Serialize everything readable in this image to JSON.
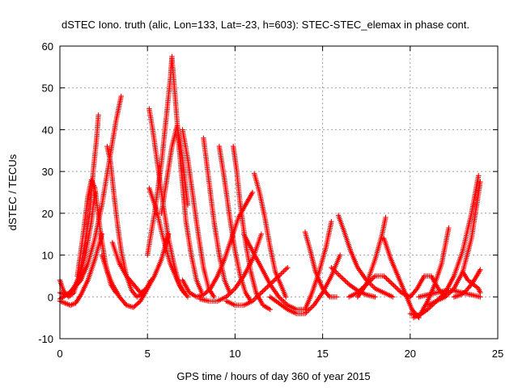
{
  "chart_data": {
    "type": "scatter",
    "title": "dSTEC Iono. truth (alic, Lon=133, Lat=-23, h=603): STEC-STEC_elemax in phase cont.",
    "xlabel": "GPS time / hours of day 360 of year 2015",
    "ylabel": "dSTEC  / TECUs",
    "xlim": [
      0,
      25
    ],
    "ylim": [
      -10,
      60
    ],
    "xticks": [
      0,
      5,
      10,
      15,
      20,
      25
    ],
    "yticks": [
      -10,
      0,
      10,
      20,
      30,
      40,
      50,
      60
    ],
    "grid": true,
    "marker": "plus",
    "color": "#ff0000",
    "series": [
      {
        "x": [
          0.0,
          0.2,
          0.5,
          0.8,
          1.1,
          1.4,
          1.7,
          1.9,
          2.1,
          2.2
        ],
        "y": [
          4.0,
          1.5,
          0.0,
          1.0,
          5.0,
          12.0,
          20.0,
          30.0,
          38.0,
          43.5
        ]
      },
      {
        "x": [
          0.0,
          0.3,
          0.6,
          0.9,
          1.2,
          1.5,
          1.8,
          2.0
        ],
        "y": [
          1.0,
          0.5,
          1.0,
          3.0,
          6.0,
          11.0,
          18.0,
          25.0
        ]
      },
      {
        "x": [
          0.0,
          0.4,
          0.8,
          1.2,
          1.6,
          2.0,
          2.4,
          2.8,
          3.2,
          3.5
        ],
        "y": [
          -0.5,
          0.5,
          2.0,
          4.0,
          8.0,
          14.0,
          22.0,
          32.0,
          42.0,
          48.0
        ]
      },
      {
        "x": [
          0.0,
          0.3,
          0.6,
          0.9,
          1.2,
          1.6,
          2.0,
          2.4
        ],
        "y": [
          -1.0,
          -1.5,
          -2.0,
          -1.5,
          0.5,
          4.0,
          9.0,
          15.0
        ]
      },
      {
        "x": [
          1.0,
          1.3,
          1.6,
          1.8,
          2.0,
          2.3,
          2.6,
          2.9,
          3.2
        ],
        "y": [
          5.0,
          14.0,
          24.0,
          28.0,
          26.0,
          16.0,
          8.0,
          3.0,
          1.0
        ]
      },
      {
        "x": [
          2.7,
          2.9,
          3.1,
          3.3,
          3.5,
          3.8,
          4.1,
          4.4,
          4.8,
          5.2
        ],
        "y": [
          36.0,
          32.0,
          24.0,
          17.0,
          11.0,
          5.0,
          1.5,
          0.0,
          1.0,
          4.0
        ]
      },
      {
        "x": [
          2.4,
          2.7,
          3.0,
          3.4,
          3.8,
          4.2,
          4.6,
          5.0
        ],
        "y": [
          10.0,
          6.0,
          3.0,
          0.0,
          -2.0,
          -2.5,
          -1.0,
          2.0
        ]
      },
      {
        "x": [
          3.0,
          3.4,
          3.8,
          4.2,
          4.6,
          5.0,
          5.4,
          5.8,
          6.2
        ],
        "y": [
          13.0,
          8.0,
          5.0,
          3.0,
          1.0,
          2.0,
          5.0,
          9.0,
          15.0
        ]
      },
      {
        "x": [
          5.1,
          5.3,
          5.6,
          5.9,
          6.2,
          6.5,
          6.8,
          7.1
        ],
        "y": [
          45.0,
          40.0,
          31.0,
          22.0,
          14.0,
          8.0,
          3.0,
          1.0
        ]
      },
      {
        "x": [
          5.1,
          5.5,
          5.9,
          6.3,
          6.7,
          7.0,
          7.3
        ],
        "y": [
          26.0,
          21.0,
          14.0,
          8.0,
          4.0,
          1.5,
          0.0
        ]
      },
      {
        "x": [
          5.0,
          5.4,
          5.8,
          6.1,
          6.3,
          6.4
        ],
        "y": [
          10.0,
          20.0,
          32.0,
          44.0,
          52.0,
          57.5
        ]
      },
      {
        "x": [
          6.4,
          6.6,
          6.8,
          7.0,
          7.2,
          7.5,
          7.8,
          8.1
        ],
        "y": [
          57.0,
          47.0,
          36.0,
          27.0,
          18.0,
          10.0,
          4.0,
          1.0
        ]
      },
      {
        "x": [
          5.8,
          6.1,
          6.4,
          6.7,
          7.0,
          7.3
        ],
        "y": [
          20.0,
          28.0,
          36.0,
          41.0,
          33.0,
          22.0
        ]
      },
      {
        "x": [
          7.0,
          7.3,
          7.6,
          7.9,
          8.2,
          8.5,
          8.8
        ],
        "y": [
          40.0,
          33.0,
          24.0,
          15.0,
          7.0,
          2.0,
          0.0
        ]
      },
      {
        "x": [
          8.2,
          8.5,
          8.8,
          9.1,
          9.4,
          9.7
        ],
        "y": [
          38.0,
          28.0,
          18.0,
          10.0,
          4.0,
          1.0
        ]
      },
      {
        "x": [
          9.1,
          9.4,
          9.7,
          10.0,
          10.3,
          10.6,
          10.9
        ],
        "y": [
          36.0,
          28.0,
          19.0,
          11.0,
          5.0,
          1.0,
          -1.0
        ]
      },
      {
        "x": [
          9.9,
          10.1,
          10.3,
          10.6,
          10.9,
          11.2,
          11.6,
          12.0
        ],
        "y": [
          36.0,
          30.0,
          22.0,
          13.0,
          6.0,
          1.0,
          -2.0,
          -3.0
        ]
      },
      {
        "x": [
          11.1,
          11.4,
          11.7,
          12.0,
          12.3,
          12.6,
          12.9
        ],
        "y": [
          29.5,
          25.0,
          19.0,
          12.0,
          6.0,
          3.0,
          0.0
        ]
      },
      {
        "x": [
          7.0,
          7.4,
          7.8,
          8.2,
          8.6,
          9.0,
          9.4,
          9.8,
          10.2,
          10.6,
          11.0
        ],
        "y": [
          4.0,
          1.0,
          0.0,
          0.5,
          2.0,
          5.0,
          9.0,
          14.0,
          19.0,
          22.0,
          25.0
        ]
      },
      {
        "x": [
          8.0,
          8.5,
          9.0,
          9.5,
          10.0,
          10.5,
          11.0,
          11.5
        ],
        "y": [
          -0.5,
          -1.0,
          -1.0,
          0.0,
          2.0,
          5.0,
          9.0,
          15.0
        ]
      },
      {
        "x": [
          9.5,
          10.0,
          10.5,
          11.0,
          11.5,
          12.0,
          12.5,
          13.0
        ],
        "y": [
          -1.0,
          -2.0,
          -2.0,
          -1.0,
          1.0,
          3.0,
          5.0,
          7.0
        ]
      },
      {
        "x": [
          10.5,
          11.0,
          11.5,
          12.0,
          12.5,
          13.0,
          13.5,
          14.0
        ],
        "y": [
          15.0,
          11.0,
          7.0,
          3.0,
          0.0,
          -2.0,
          -3.0,
          -3.0
        ]
      },
      {
        "x": [
          12.0,
          12.5,
          13.0,
          13.5,
          14.0,
          14.5,
          15.0,
          15.5,
          16.0
        ],
        "y": [
          0.0,
          -1.5,
          -3.0,
          -4.0,
          -4.0,
          -2.0,
          1.0,
          5.0,
          10.0
        ]
      },
      {
        "x": [
          14.0,
          14.3,
          14.6,
          15.0,
          15.4,
          15.8
        ],
        "y": [
          15.5,
          11.0,
          6.0,
          2.0,
          0.0,
          0.0
        ]
      },
      {
        "x": [
          14.0,
          14.4,
          14.8,
          15.2,
          15.5
        ],
        "y": [
          -3.0,
          1.0,
          6.0,
          12.0,
          18.0
        ]
      },
      {
        "x": [
          15.9,
          16.2,
          16.6,
          17.0,
          17.5,
          18.0,
          18.5,
          19.0
        ],
        "y": [
          19.5,
          16.0,
          11.0,
          7.0,
          4.0,
          2.0,
          1.0,
          0.0
        ]
      },
      {
        "x": [
          15.5,
          16.0,
          16.5,
          17.0,
          17.5,
          18.0
        ],
        "y": [
          7.0,
          5.0,
          3.0,
          1.5,
          0.5,
          0.0
        ]
      },
      {
        "x": [
          16.5,
          17.0,
          17.5,
          18.0,
          18.5,
          19.0,
          19.5,
          20.0
        ],
        "y": [
          0.0,
          1.0,
          3.0,
          5.0,
          5.0,
          3.0,
          1.0,
          0.0
        ]
      },
      {
        "x": [
          17.0,
          17.5,
          18.0,
          18.4,
          18.6
        ],
        "y": [
          0.0,
          3.0,
          9.0,
          15.0,
          19.0
        ]
      },
      {
        "x": [
          18.5,
          18.9,
          19.3,
          19.7,
          20.1,
          20.5
        ],
        "y": [
          14.0,
          9.0,
          5.0,
          1.0,
          -3.0,
          -5.0
        ]
      },
      {
        "x": [
          20.2,
          20.6,
          21.0,
          21.4,
          21.8,
          22.2
        ],
        "y": [
          -5.0,
          -4.0,
          -1.0,
          3.0,
          8.0,
          16.5
        ]
      },
      {
        "x": [
          20.0,
          20.5,
          21.0,
          21.5,
          22.0,
          22.5,
          23.0,
          23.5,
          23.9
        ],
        "y": [
          -4.0,
          -4.5,
          -3.0,
          -1.0,
          1.0,
          5.0,
          11.0,
          20.0,
          29.0
        ]
      },
      {
        "x": [
          21.0,
          21.5,
          22.0,
          22.5,
          23.0,
          23.5,
          24.0
        ],
        "y": [
          -2.0,
          -1.0,
          0.0,
          2.0,
          6.0,
          14.0,
          27.5
        ]
      },
      {
        "x": [
          20.5,
          21.0,
          21.5,
          22.0,
          22.5,
          23.0,
          23.5,
          24.0
        ],
        "y": [
          0.0,
          0.5,
          1.0,
          1.5,
          1.5,
          1.0,
          0.5,
          0.0
        ]
      },
      {
        "x": [
          22.5,
          22.9,
          23.2,
          23.5,
          23.8,
          24.0
        ],
        "y": [
          0.0,
          0.5,
          1.5,
          3.0,
          5.0,
          6.5
        ]
      },
      {
        "x": [
          20.0,
          20.4,
          20.8,
          21.2,
          21.6,
          22.0
        ],
        "y": [
          0.0,
          2.0,
          5.0,
          5.0,
          2.0,
          0.0
        ]
      },
      {
        "x": [
          23.0,
          23.3,
          23.6,
          23.9,
          24.0
        ],
        "y": [
          6.0,
          4.0,
          3.0,
          2.0,
          1.0
        ]
      }
    ]
  }
}
